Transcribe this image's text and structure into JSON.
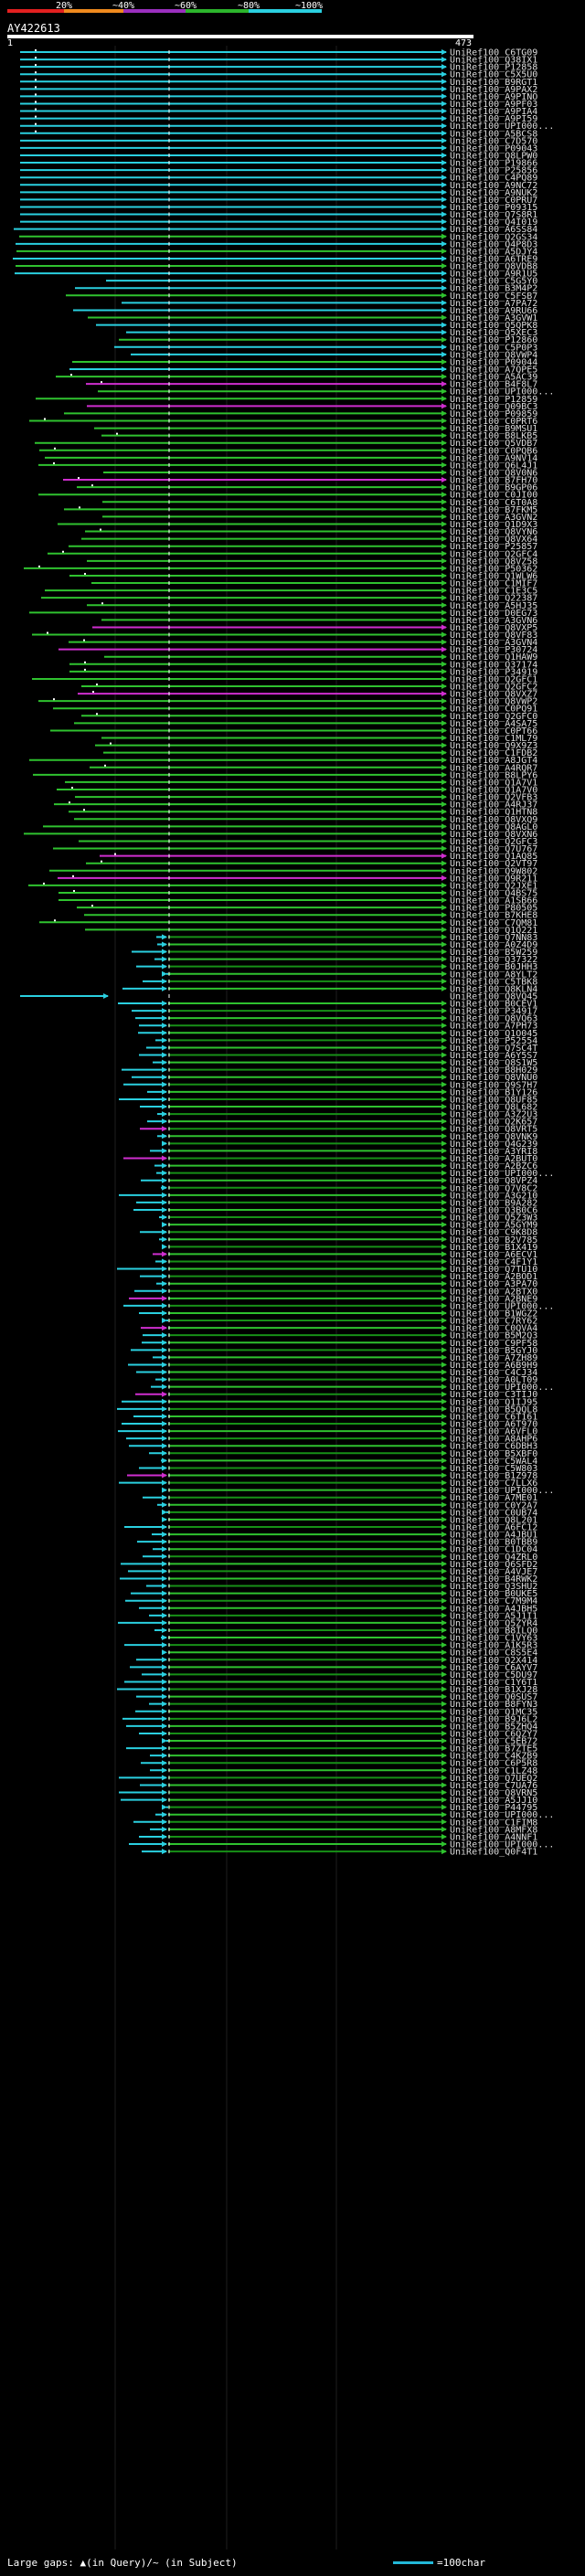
{
  "legend": {
    "ticks": [
      "20%",
      "~40%",
      "~60%",
      "~80%",
      "~100%"
    ],
    "colors": [
      "#e32020",
      "#f08a1e",
      "#9b2fbf",
      "#2cb52c",
      "#2ad0e0"
    ]
  },
  "query": {
    "label": "AY422613",
    "start": "1",
    "end": "473"
  },
  "colors": {
    "cyan": "#2ad0e0",
    "green": "#2fc22f",
    "dark_green": "#179017",
    "magenta": "#cf2ecf",
    "tail": "#7ee0ee"
  },
  "hits": [
    "UniRef100_C6TG09",
    "UniRef100_Q38IX1",
    "UniRef100_P12858",
    "UniRef100_C5X5U0",
    "UniRef100_B9RGT1",
    "UniRef100_A9PAX2",
    "UniRef100_A9PINO",
    "UniRef100_A9PF03",
    "UniRef100_A9PIA4",
    "UniRef100_A9PI59",
    "UniRef100_UPI000...",
    "UniRef100_A5BCS8",
    "UniRef100_C7D570",
    "UniRef100_P09043",
    "UniRef100_Q8LPW0",
    "UniRef100_P19866",
    "UniRef100_P25856",
    "UniRef100_C4PQ89",
    "UniRef100_A9NC72",
    "UniRef100_A9NUK2",
    "UniRef100_C0PRU7",
    "UniRef100_P09315",
    "UniRef100_Q7S8R1",
    "UniRef100_Q4I019",
    "UniRef100_A6SS84",
    "UniRef100_Q2GS34",
    "UniRef100_Q4P8D3",
    "UniRef100_A5DJY4",
    "UniRef100_A6TRE9",
    "UniRef100_Q8VDB8",
    "UniRef100_A9R1U5",
    "UniRef100_C5G5Y0",
    "UniRef100_B3M4P2",
    "UniRef100_C5FSB7",
    "UniRef100_A7PA72",
    "UniRef100_A9RU66",
    "UniRef100_A3GVW1",
    "UniRef100_Q5QPK8",
    "UniRef100_Q5XEC3",
    "UniRef100_P12860",
    "UniRef100_C5P0P3",
    "UniRef100_Q8VWP4",
    "UniRef100_P09044",
    "UniRef100_A7QPE5",
    "UniRef100_A5AC39",
    "UniRef100_B4F8L7",
    "UniRef100_UPI000...",
    "UniRef100_P12859",
    "UniRef100_Q09BC3",
    "UniRef100_P09859",
    "UniRef100_C0PRT6",
    "UniRef100_B9MSU1",
    "UniRef100_B8LKB5",
    "UniRef100_Q5VDB7",
    "UniRef100_C0PQB6",
    "UniRef100_A9NV14",
    "UniRef100_Q6L4J1",
    "UniRef100_Q8V0N6",
    "UniRef100_B7FH70",
    "UniRef100_B9GP06",
    "UniRef100_C0JI00",
    "UniRef100_C6T0A8",
    "UniRef100_B7FKM5",
    "UniRef100_A3GVN2",
    "UniRef100_Q1D9X3",
    "UniRef100_Q8VYN6",
    "UniRef100_Q8VX64",
    "UniRef100_P25857",
    "UniRef100_Q2GFC4",
    "UniRef100_Q8VZ58",
    "UniRef100_P50362",
    "UniRef100_Q1WLW6",
    "UniRef100_C1MIF7",
    "UniRef100_C1E3C5",
    "UniRef100_Q22387",
    "UniRef100_A5HJ35",
    "UniRef100_D0EG73",
    "UniRef100_A3GVN6",
    "UniRef100_Q8VXP5",
    "UniRef100_Q8VF83",
    "UniRef100_A3GVN4",
    "UniRef100_P30724",
    "UniRef100_Q1HAW9",
    "UniRef100_Q37174",
    "UniRef100_P34919",
    "UniRef100_Q2GFC1",
    "UniRef100_Q2GFC2",
    "UniRef100_Q8VXZ7",
    "UniRef100_Q8VWP2",
    "UniRef100_C0PQ91",
    "UniRef100_Q2GFC0",
    "UniRef100_A4SA75",
    "UniRef100_C0PT66",
    "UniRef100_C1ML79",
    "UniRef100_Q9X9Z3",
    "UniRef100_C1FDB2",
    "UniRef100_A8JGT4",
    "UniRef100_A4RQR7",
    "UniRef100_B8LPY6",
    "UniRef100_Q1A7V1",
    "UniRef100_Q1A7V0",
    "UniRef100_Q2VFB3",
    "UniRef100_A4RJ37",
    "UniRef100_Q1HTN8",
    "UniRef100_Q8VXQ9",
    "UniRef100_Q8AGL0",
    "UniRef100_Q8VXN6",
    "UniRef100_Q2GFC3",
    "UniRef100_Q7U767",
    "UniRef100_Q1AQ85",
    "UniRef100_Q2VT97",
    "UniRef100_Q9W802",
    "UniRef100_Q9R211",
    "UniRef100_Q2JXE1",
    "UniRef100_Q4BS75",
    "UniRef100_A1SB66",
    "UniRef100_P80505",
    "UniRef100_B7KHE8",
    "UniRef100_C7QM81",
    "UniRef100_Q1Q221",
    "UniRef100_Q7NN83",
    "UniRef100_A0Z4D9",
    "UniRef100_B5W259",
    "UniRef100_Q37322",
    "UniRef100_B0JHH3",
    "UniRef100_A8YLT2",
    "UniRef100_C5TBK8",
    "UniRef100_Q8KLN4",
    "UniRef100_Q8VQ45",
    "UniRef100_B0CEV1",
    "UniRef100_P34917",
    "UniRef100_Q8VQ63",
    "UniRef100_A7PH73",
    "UniRef100_Q1O045",
    "UniRef100_P52554",
    "UniRef100_Q7SC4T",
    "UniRef100_A6Y5S7",
    "UniRef100_Q8S1W5",
    "UniRef100_B8H029",
    "UniRef100_Q8VNU0",
    "UniRef100_Q9S7H7",
    "UniRef100_B1Y126",
    "UniRef100_Q8UF85",
    "UniRef100_Q8L682",
    "UniRef100_A3Z2U3",
    "UniRef100_Q2K657",
    "UniRef100_Q8VRT5",
    "UniRef100_Q8VNK9",
    "UniRef100_Q4G239",
    "UniRef100_A3YRI8",
    "UniRef100_A2BUT0",
    "UniRef100_A2BZC6",
    "UniRef100_UPI000...",
    "UniRef100_Q8VPZ4",
    "UniRef100_Q7V8C2",
    "UniRef100_A3G210",
    "UniRef100_B9A282",
    "UniRef100_Q3B0C6",
    "UniRef100_Q5Z3W3",
    "UniRef100_A5GYM9",
    "UniRef100_C9K8D8",
    "UniRef100_B2V785",
    "UniRef100_B1X419",
    "UniRef100_A6ECV1",
    "UniRef100_C4F1Y1",
    "UniRef100_Q7TU10",
    "UniRef100_A2BOD1",
    "UniRef100_A3PA70",
    "UniRef100_A2BTX0",
    "UniRef100_A2BNE9",
    "UniRef100_UPI000...",
    "UniRef100_B1WGZ2",
    "UniRef100_C7RY62",
    "UniRef100_C0QVA4",
    "UniRef100_B5M2Q3",
    "UniRef100_C9PF58",
    "UniRef100_B5GYJ0",
    "UniRef100_A7ZH89",
    "UniRef100_A6B9H9",
    "UniRef100_C4CJ34",
    "UniRef100_A0LT09",
    "UniRef100_UPI000...",
    "UniRef100_C3TIJ0",
    "UniRef100_Q1IJ95",
    "UniRef100_B5QQL8",
    "UniRef100_C6T161",
    "UniRef100_A6T970",
    "UniRef100_A6VFL0",
    "UniRef100_A8AHP6",
    "UniRef100_C6DBH3",
    "UniRef100_B5XBF0",
    "UniRef100_C5WAL4",
    "UniRef100_C5W803",
    "UniRef100_B1Z978",
    "UniRef100_C7LLX6",
    "UniRef100_UPI000...",
    "UniRef100_A7ME01",
    "UniRef100_C0Y2A7",
    "UniRef100_C0UB74",
    "UniRef100_Q8L201",
    "UniRef100_A6FC12",
    "UniRef100_A4JBU1",
    "UniRef100_B0TBB9",
    "UniRef100_C1DC04",
    "UniRef100_Q4ZRL0",
    "UniRef100_Q6SFD2",
    "UniRef100_A4VJE7",
    "UniRef100_B4RWK2",
    "UniRef100_Q3SHU2",
    "UniRef100_B0UKE5",
    "UniRef100_C7M9M4",
    "UniRef100_A4JBH5",
    "UniRef100_A5J1I1",
    "UniRef100_Q5ZYR4",
    "UniRef100_B8ILQ0",
    "UniRef100_C1VY63",
    "UniRef100_A1K5R3",
    "UniRef100_C8S5E4",
    "UniRef100_Q2X414",
    "UniRef100_C6AYV7",
    "UniRef100_C5DU97",
    "UniRef100_C1Y6T1",
    "UniRef100_B1XJ28",
    "UniRef100_Q0SUS7",
    "UniRef100_B8FYN3",
    "UniRef100_Q1MC35",
    "UniRef100_B9J6L2",
    "UniRef100_B5ZHQ4",
    "UniRef100_C6QZY7",
    "UniRef100_C5EB72",
    "UniRef100_B7ZTE5",
    "UniRef100_C4KZB9",
    "UniRef100_C6P5R8",
    "UniRef100_C1LZ48",
    "UniRef100_Q7UEQ2",
    "UniRef100_C7UA76",
    "UniRef100_Q8VRN5",
    "UniRef100_A5JJ10",
    "UniRef100_P44795",
    "UniRef100_UPI000...",
    "UniRef100_C1FIM8",
    "UniRef100_A8MFX8",
    "UniRef100_A4NNF1",
    "UniRef100_UPI000...",
    "UniRef100_Q0F4T1"
  ],
  "footer": {
    "gap_note": "Large gaps: ▲(in Query)/~ (in Subject)",
    "scale": "=100char"
  }
}
